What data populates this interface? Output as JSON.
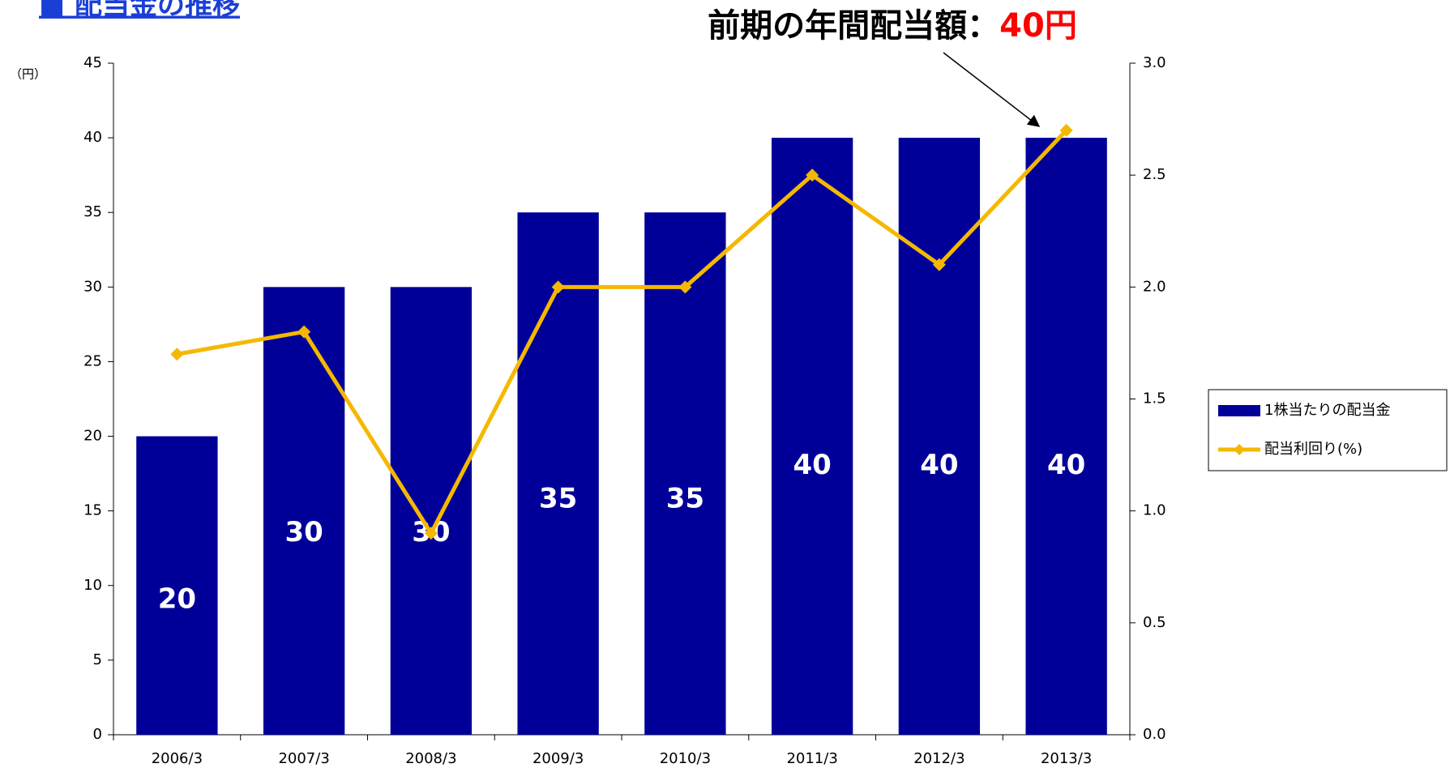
{
  "chart_data": {
    "type": "bar",
    "title": "■ 配当金の推移",
    "annotation": {
      "text": "前期の年間配当額：",
      "highlight": "40円"
    },
    "y_axis_label": "（円）",
    "categories": [
      "2006/3",
      "2007/3",
      "2008/3",
      "2009/3",
      "2010/3",
      "2011/3",
      "2012/3",
      "2013/3"
    ],
    "series": [
      {
        "name": "1株当たりの配当金",
        "type": "bar",
        "color": "#000099",
        "values": [
          20,
          30,
          30,
          35,
          35,
          40,
          40,
          40
        ]
      },
      {
        "name": "配当利回り(%)",
        "type": "line",
        "axis": "y2",
        "color": "#f5b800",
        "values": [
          1.7,
          1.8,
          0.9,
          2.0,
          2.0,
          2.5,
          2.1,
          2.7
        ]
      }
    ],
    "ylim": [
      0,
      45
    ],
    "yticks": [
      0,
      5,
      10,
      15,
      20,
      25,
      30,
      35,
      40,
      45
    ],
    "y2lim": [
      0,
      3
    ],
    "y2ticks": [
      {
        "value": 0,
        "label": "0.0"
      },
      0.5,
      {
        "value": 1,
        "label": "1.0"
      },
      1.5,
      {
        "value": 2,
        "label": "2.0"
      },
      2.5,
      {
        "value": 3,
        "label": "3.0"
      }
    ],
    "legend": "right",
    "grid": false
  }
}
